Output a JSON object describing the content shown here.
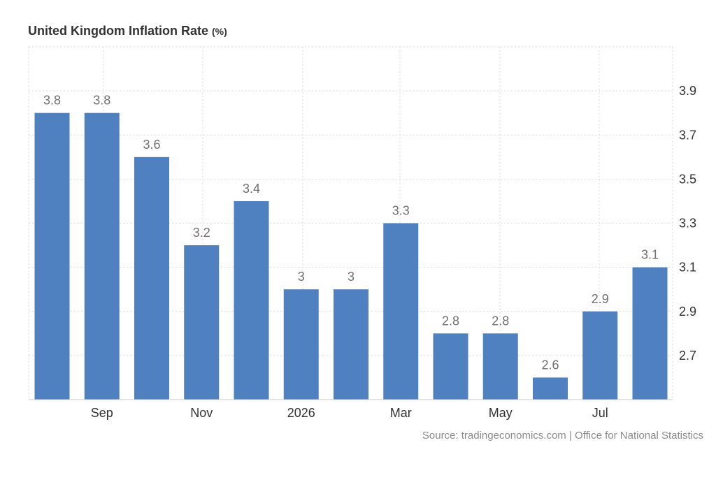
{
  "chart_title": "United Kingdom Inflation Rate",
  "chart_title_unit": "(%)",
  "source_text": "Source: tradingeconomics.com | Office for National Statistics",
  "colors": {
    "bar": "#4f81c0",
    "grid": "#d9d9d9",
    "axis": "#c8c8c8"
  },
  "chart_data": {
    "type": "bar",
    "title": "United Kingdom Inflation Rate (%)",
    "categories": [
      "",
      "Sep",
      "",
      "Nov",
      "",
      "2026",
      "",
      "Mar",
      "",
      "May",
      "",
      "Jul",
      ""
    ],
    "values": [
      3.8,
      3.8,
      3.6,
      3.2,
      3.4,
      3.0,
      3.0,
      3.3,
      2.8,
      2.8,
      2.6,
      2.9,
      3.1
    ],
    "data_labels": [
      "3.8",
      "3.8",
      "3.6",
      "3.2",
      "3.4",
      "3",
      "3",
      "3.3",
      "2.8",
      "2.8",
      "2.6",
      "2.9",
      "3.1"
    ],
    "y_ticks": [
      "3.9",
      "3.7",
      "3.5",
      "3.3",
      "3.1",
      "2.9",
      "2.7"
    ],
    "ylim": [
      2.5,
      4.1
    ],
    "y_axis_side": "right",
    "grid": true,
    "legend": "none"
  }
}
